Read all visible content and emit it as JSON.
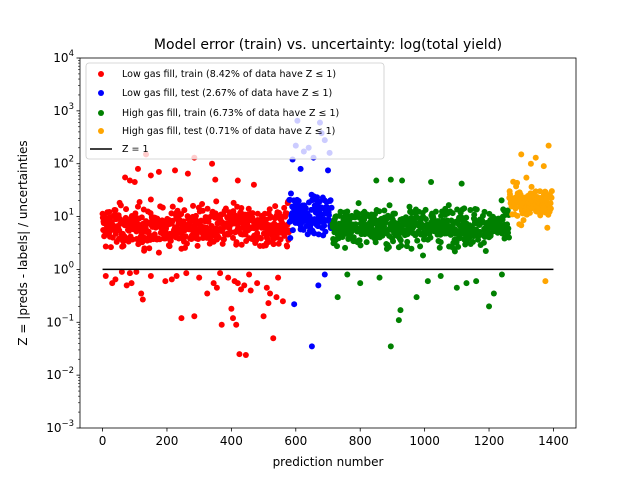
{
  "chart_data": {
    "type": "scatter",
    "title": "Model error (train) vs. uncertainty: log(total yield)",
    "xlabel": "prediction number",
    "ylabel": "Z = |preds - labels| / uncertainties",
    "xlim": [
      -70,
      1470
    ],
    "ylim": [
      0.001,
      10000
    ],
    "yscale": "log",
    "xticks": [
      0,
      200,
      400,
      600,
      800,
      1000,
      1200,
      1400
    ],
    "yticks": [
      {
        "value": 0.001,
        "base": "10",
        "exp": "−3"
      },
      {
        "value": 0.01,
        "base": "10",
        "exp": "−2"
      },
      {
        "value": 0.1,
        "base": "10",
        "exp": "−1"
      },
      {
        "value": 1,
        "base": "10",
        "exp": "0"
      },
      {
        "value": 10,
        "base": "10",
        "exp": "1"
      },
      {
        "value": 100,
        "base": "10",
        "exp": "2"
      },
      {
        "value": 1000,
        "base": "10",
        "exp": "3"
      },
      {
        "value": 10000,
        "base": "10",
        "exp": "4"
      }
    ],
    "legend_position": "top-left",
    "reference_line": {
      "label": "Z = 1",
      "y": 1,
      "x_range": [
        0,
        1400
      ],
      "color": "#000000"
    },
    "series": [
      {
        "name": "Low gas fill, train (8.42% of data have Z ≤ 1)",
        "color": "#ff0000",
        "x_range": [
          0,
          579
        ],
        "typical_range": [
          1,
          40
        ],
        "low_points": [
          {
            "x": 10,
            "y": 0.75
          },
          {
            "x": 30,
            "y": 0.55
          },
          {
            "x": 40,
            "y": 0.65
          },
          {
            "x": 60,
            "y": 0.9
          },
          {
            "x": 75,
            "y": 0.5
          },
          {
            "x": 85,
            "y": 0.85
          },
          {
            "x": 90,
            "y": 0.55
          },
          {
            "x": 105,
            "y": 0.9
          },
          {
            "x": 120,
            "y": 0.35
          },
          {
            "x": 125,
            "y": 0.27
          },
          {
            "x": 150,
            "y": 0.75
          },
          {
            "x": 195,
            "y": 0.6
          },
          {
            "x": 215,
            "y": 0.65
          },
          {
            "x": 230,
            "y": 0.75
          },
          {
            "x": 245,
            "y": 0.12
          },
          {
            "x": 260,
            "y": 0.85
          },
          {
            "x": 285,
            "y": 0.13
          },
          {
            "x": 300,
            "y": 0.7
          },
          {
            "x": 325,
            "y": 0.35
          },
          {
            "x": 345,
            "y": 0.55
          },
          {
            "x": 355,
            "y": 0.45
          },
          {
            "x": 365,
            "y": 0.85
          },
          {
            "x": 370,
            "y": 0.09
          },
          {
            "x": 390,
            "y": 0.7
          },
          {
            "x": 400,
            "y": 0.18
          },
          {
            "x": 405,
            "y": 0.12
          },
          {
            "x": 410,
            "y": 0.6
          },
          {
            "x": 415,
            "y": 0.09
          },
          {
            "x": 420,
            "y": 0.55
          },
          {
            "x": 425,
            "y": 0.025
          },
          {
            "x": 430,
            "y": 0.42
          },
          {
            "x": 440,
            "y": 0.5
          },
          {
            "x": 445,
            "y": 0.024
          },
          {
            "x": 455,
            "y": 0.8
          },
          {
            "x": 460,
            "y": 0.4
          },
          {
            "x": 480,
            "y": 0.55
          },
          {
            "x": 500,
            "y": 0.13
          },
          {
            "x": 510,
            "y": 0.45
          },
          {
            "x": 515,
            "y": 0.23
          },
          {
            "x": 520,
            "y": 0.35
          },
          {
            "x": 530,
            "y": 0.05
          },
          {
            "x": 540,
            "y": 0.3
          },
          {
            "x": 545,
            "y": 0.7
          },
          {
            "x": 560,
            "y": 0.25
          }
        ],
        "high_points": [
          {
            "x": 70,
            "y": 55
          },
          {
            "x": 85,
            "y": 48
          },
          {
            "x": 100,
            "y": 45
          },
          {
            "x": 110,
            "y": 80
          },
          {
            "x": 135,
            "y": 150
          },
          {
            "x": 150,
            "y": 60
          },
          {
            "x": 175,
            "y": 70
          },
          {
            "x": 225,
            "y": 75
          },
          {
            "x": 265,
            "y": 65
          },
          {
            "x": 285,
            "y": 130
          },
          {
            "x": 340,
            "y": 100
          },
          {
            "x": 350,
            "y": 50
          },
          {
            "x": 420,
            "y": 48
          },
          {
            "x": 470,
            "y": 40
          }
        ]
      },
      {
        "name": "Low gas fill, test (2.67% of data have Z ≤ 1)",
        "color": "#0000ff",
        "x_range": [
          580,
          713
        ],
        "typical_range": [
          2,
          60
        ],
        "low_points": [
          {
            "x": 595,
            "y": 0.22
          },
          {
            "x": 650,
            "y": 0.035
          },
          {
            "x": 670,
            "y": 0.5
          },
          {
            "x": 690,
            "y": 0.8
          }
        ],
        "high_points": [
          {
            "x": 590,
            "y": 120
          },
          {
            "x": 600,
            "y": 220
          },
          {
            "x": 605,
            "y": 650
          },
          {
            "x": 615,
            "y": 80
          },
          {
            "x": 625,
            "y": 170
          },
          {
            "x": 640,
            "y": 200
          },
          {
            "x": 655,
            "y": 130
          },
          {
            "x": 675,
            "y": 600
          },
          {
            "x": 680,
            "y": 380
          },
          {
            "x": 690,
            "y": 280
          },
          {
            "x": 700,
            "y": 75
          },
          {
            "x": 705,
            "y": 160
          }
        ]
      },
      {
        "name": "High gas fill, train (6.73% of data have Z ≤ 1)",
        "color": "#008000",
        "x_range": [
          714,
          1262
        ],
        "typical_range": [
          1.2,
          35
        ],
        "low_points": [
          {
            "x": 730,
            "y": 0.3
          },
          {
            "x": 760,
            "y": 0.8
          },
          {
            "x": 800,
            "y": 0.55
          },
          {
            "x": 860,
            "y": 0.7
          },
          {
            "x": 895,
            "y": 0.035
          },
          {
            "x": 920,
            "y": 0.11
          },
          {
            "x": 925,
            "y": 0.17
          },
          {
            "x": 975,
            "y": 0.3
          },
          {
            "x": 1010,
            "y": 0.6
          },
          {
            "x": 1050,
            "y": 0.75
          },
          {
            "x": 1100,
            "y": 0.45
          },
          {
            "x": 1130,
            "y": 0.55
          },
          {
            "x": 1160,
            "y": 0.6
          },
          {
            "x": 1200,
            "y": 0.2
          },
          {
            "x": 1215,
            "y": 0.35
          },
          {
            "x": 1240,
            "y": 0.8
          }
        ],
        "high_points": [
          {
            "x": 850,
            "y": 48
          },
          {
            "x": 895,
            "y": 50
          },
          {
            "x": 930,
            "y": 48
          },
          {
            "x": 1020,
            "y": 45
          },
          {
            "x": 1115,
            "y": 42
          }
        ]
      },
      {
        "name": "High gas fill, test (0.71% of data have Z ≤ 1)",
        "color": "#ffa500",
        "x_range": [
          1263,
          1395
        ],
        "typical_range": [
          4,
          80
        ],
        "low_points": [
          {
            "x": 1375,
            "y": 0.6
          }
        ],
        "high_points": [
          {
            "x": 1300,
            "y": 150
          },
          {
            "x": 1330,
            "y": 100
          },
          {
            "x": 1345,
            "y": 130
          },
          {
            "x": 1370,
            "y": 90
          },
          {
            "x": 1385,
            "y": 220
          }
        ]
      }
    ]
  }
}
